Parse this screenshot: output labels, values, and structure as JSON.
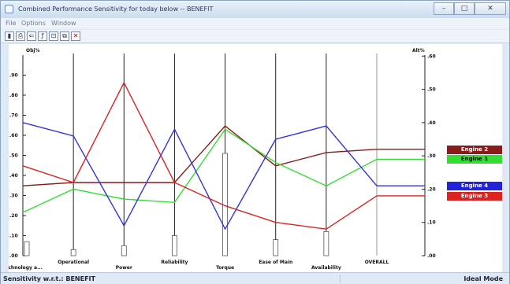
{
  "window": {
    "title": "Combined Performance Sensitivity for today below -- BENEFIT"
  },
  "menu": [
    {
      "label": "File"
    },
    {
      "label": "Options"
    },
    {
      "label": "Window"
    }
  ],
  "toolbar": {
    "icons": [
      "bar-chart-icon",
      "print-icon",
      "scale-icon",
      "text-icon",
      "export-icon",
      "copy-icon",
      "close-icon"
    ]
  },
  "status": {
    "left": "Sensitivity w.r.t.: BENEFIT",
    "right": "Ideal Mode"
  },
  "chart_data": {
    "type": "line",
    "chart_style": "performance-sensitivity",
    "left_axis_label": "Obj%",
    "right_axis_label": "Alt%",
    "left_ticks": [
      ".00",
      ".10",
      ".20",
      ".30",
      ".40",
      ".50",
      ".60",
      ".70",
      ".80",
      ".90"
    ],
    "right_ticks": [
      ".00",
      ".10",
      ".20",
      ".30",
      ".40",
      ".50",
      ".60"
    ],
    "left_range": [
      0,
      1
    ],
    "right_range": [
      0,
      0.6
    ],
    "criteria": [
      "Technology a...",
      "Operational",
      "Power",
      "Reliability",
      "Torque",
      "Ease of Main",
      "Availability",
      "OVERALL"
    ],
    "criteria_weights": [
      0.07,
      0.03,
      0.05,
      0.1,
      0.51,
      0.08,
      0.12
    ],
    "series": [
      {
        "name": "Engine 2",
        "color": "#8b1a1a",
        "legend_fill": "#8b1a1a",
        "legend_text": "#ffffff",
        "values": [
          0.21,
          0.22,
          0.22,
          0.22,
          0.39,
          0.27,
          0.31,
          0.32
        ]
      },
      {
        "name": "Engine 1",
        "color": "#33dd33",
        "legend_fill": "#33dd33",
        "legend_text": "#000000",
        "values": [
          0.13,
          0.2,
          0.17,
          0.16,
          0.38,
          0.28,
          0.21,
          0.29
        ]
      },
      {
        "name": "Engine 4",
        "color": "#3333dd",
        "legend_fill": "#2222dd",
        "legend_text": "#ffffff",
        "values": [
          0.4,
          0.36,
          0.09,
          0.38,
          0.08,
          0.35,
          0.39,
          0.21
        ]
      },
      {
        "name": "Engine 3",
        "color": "#dd2222",
        "legend_fill": "#dd2222",
        "legend_text": "#ffffff",
        "values": [
          0.27,
          0.22,
          0.52,
          0.22,
          0.15,
          0.1,
          0.08,
          0.18
        ]
      }
    ],
    "grid": false
  }
}
